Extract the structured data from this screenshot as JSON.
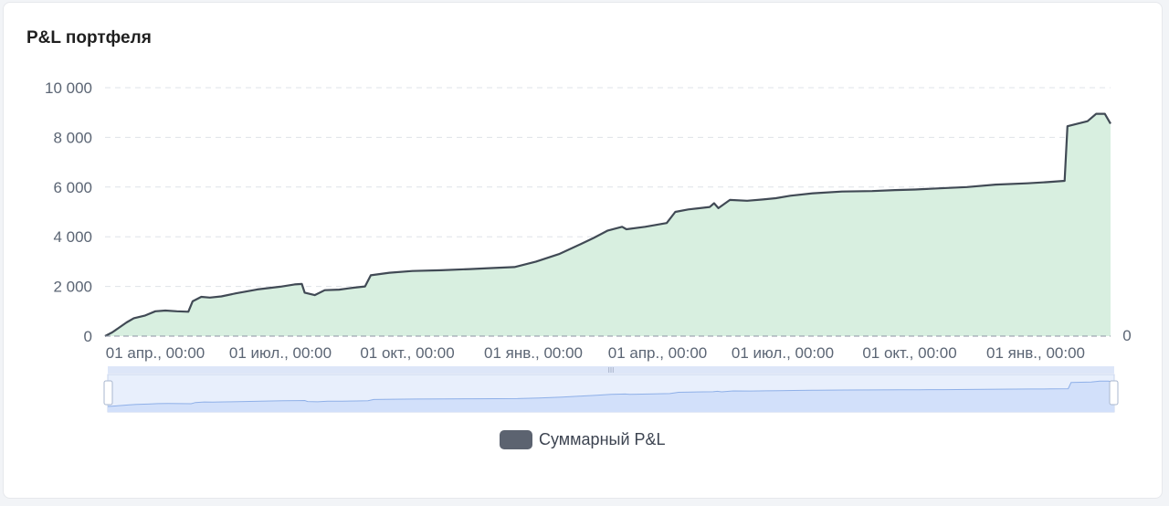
{
  "card": {
    "title": "P&L портфеля"
  },
  "chart_data": {
    "type": "area",
    "title": "P&L портфеля",
    "ylim": [
      0,
      10000
    ],
    "y_ticks": [
      "0",
      "2 000",
      "4 000",
      "6 000",
      "8 000",
      "10 000"
    ],
    "y_tick_values": [
      0,
      2000,
      4000,
      6000,
      8000,
      10000
    ],
    "x_ticks": [
      "01 апр., 00:00",
      "01 июл., 00:00",
      "01 окт., 00:00",
      "01 янв., 00:00",
      "01 апр., 00:00",
      "01 июл., 00:00",
      "01 окт., 00:00",
      "01 янв., 00:00"
    ],
    "x_range": [
      "2023-03-31",
      "2025-02-28"
    ],
    "right_axis_label": "0",
    "grid": true,
    "legend_position": "bottom",
    "has_zoom_slider": true,
    "series": [
      {
        "name": "Суммарный P&L",
        "line_color": "#414a55",
        "fill_color": "#d8efe0",
        "points": [
          [
            "2023-03-31",
            0
          ],
          [
            "2023-04-05",
            150
          ],
          [
            "2023-04-10",
            350
          ],
          [
            "2023-04-15",
            550
          ],
          [
            "2023-04-20",
            720
          ],
          [
            "2023-04-28",
            830
          ],
          [
            "2023-05-05",
            1000
          ],
          [
            "2023-05-12",
            1030
          ],
          [
            "2023-05-20",
            1000
          ],
          [
            "2023-05-28",
            980
          ],
          [
            "2023-05-31",
            1400
          ],
          [
            "2023-06-06",
            1580
          ],
          [
            "2023-06-12",
            1550
          ],
          [
            "2023-06-20",
            1600
          ],
          [
            "2023-06-30",
            1720
          ],
          [
            "2023-07-15",
            1880
          ],
          [
            "2023-07-31",
            1990
          ],
          [
            "2023-08-10",
            2080
          ],
          [
            "2023-08-15",
            2100
          ],
          [
            "2023-08-17",
            1750
          ],
          [
            "2023-08-24",
            1650
          ],
          [
            "2023-08-31",
            1850
          ],
          [
            "2023-09-10",
            1870
          ],
          [
            "2023-09-20",
            1950
          ],
          [
            "2023-09-28",
            2000
          ],
          [
            "2023-10-02",
            2450
          ],
          [
            "2023-10-15",
            2550
          ],
          [
            "2023-10-31",
            2620
          ],
          [
            "2023-11-20",
            2650
          ],
          [
            "2023-12-10",
            2700
          ],
          [
            "2023-12-25",
            2740
          ],
          [
            "2024-01-10",
            2780
          ],
          [
            "2024-01-25",
            3000
          ],
          [
            "2024-02-10",
            3300
          ],
          [
            "2024-02-25",
            3700
          ],
          [
            "2024-03-05",
            3950
          ],
          [
            "2024-03-15",
            4250
          ],
          [
            "2024-03-25",
            4400
          ],
          [
            "2024-03-28",
            4300
          ],
          [
            "2024-04-10",
            4400
          ],
          [
            "2024-04-25",
            4550
          ],
          [
            "2024-05-01",
            5000
          ],
          [
            "2024-05-10",
            5100
          ],
          [
            "2024-05-25",
            5200
          ],
          [
            "2024-05-28",
            5350
          ],
          [
            "2024-05-31",
            5150
          ],
          [
            "2024-06-08",
            5480
          ],
          [
            "2024-06-20",
            5450
          ],
          [
            "2024-07-01",
            5500
          ],
          [
            "2024-07-10",
            5550
          ],
          [
            "2024-07-20",
            5650
          ],
          [
            "2024-08-05",
            5750
          ],
          [
            "2024-08-25",
            5820
          ],
          [
            "2024-09-15",
            5840
          ],
          [
            "2024-10-01",
            5880
          ],
          [
            "2024-10-15",
            5900
          ],
          [
            "2024-11-01",
            5950
          ],
          [
            "2024-11-20",
            6000
          ],
          [
            "2024-12-10",
            6100
          ],
          [
            "2025-01-01",
            6150
          ],
          [
            "2025-01-15",
            6200
          ],
          [
            "2025-01-27",
            6250
          ],
          [
            "2025-01-29",
            8450
          ],
          [
            "2025-02-05",
            8550
          ],
          [
            "2025-02-12",
            8650
          ],
          [
            "2025-02-18",
            8950
          ],
          [
            "2025-02-24",
            8950
          ],
          [
            "2025-02-28",
            8550
          ]
        ]
      }
    ]
  },
  "legend": {
    "series_label": "Суммарный P&L",
    "swatch_color": "#5c6370"
  },
  "zoom": {
    "handle_glyph": "III"
  }
}
